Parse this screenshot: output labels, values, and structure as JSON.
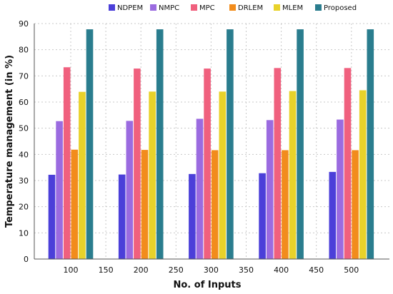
{
  "chart_data": {
    "type": "bar",
    "xlabel": "No. of Inputs",
    "ylabel": "Temperature management (in %)",
    "categories": [
      "100",
      "200",
      "300",
      "400",
      "500"
    ],
    "x_ticks": [
      "100",
      "150",
      "200",
      "250",
      "300",
      "350",
      "400",
      "450",
      "500"
    ],
    "y_ticks": [
      "0",
      "10",
      "20",
      "30",
      "40",
      "50",
      "60",
      "70",
      "80",
      "90"
    ],
    "ylim": [
      0,
      90
    ],
    "grid": true,
    "legend_position": "top",
    "series": [
      {
        "name": "NDPEM",
        "color": "#4b3fd9",
        "values": [
          32.2,
          32.3,
          32.5,
          32.8,
          33.3
        ]
      },
      {
        "name": "NMPC",
        "color": "#9b6be0",
        "values": [
          52.7,
          52.8,
          53.6,
          53.1,
          53.3
        ]
      },
      {
        "name": "MPC",
        "color": "#f0607e",
        "values": [
          73.3,
          72.8,
          72.8,
          73.0,
          73.0
        ]
      },
      {
        "name": "DRLEM",
        "color": "#f28c1c",
        "values": [
          41.8,
          41.7,
          41.6,
          41.6,
          41.6
        ]
      },
      {
        "name": "MLEM",
        "color": "#e8d22a",
        "values": [
          63.9,
          64.0,
          64.0,
          64.2,
          64.5
        ]
      },
      {
        "name": "Proposed",
        "color": "#2a7d8e",
        "values": [
          87.8,
          87.8,
          87.8,
          87.8,
          87.8
        ]
      }
    ]
  }
}
